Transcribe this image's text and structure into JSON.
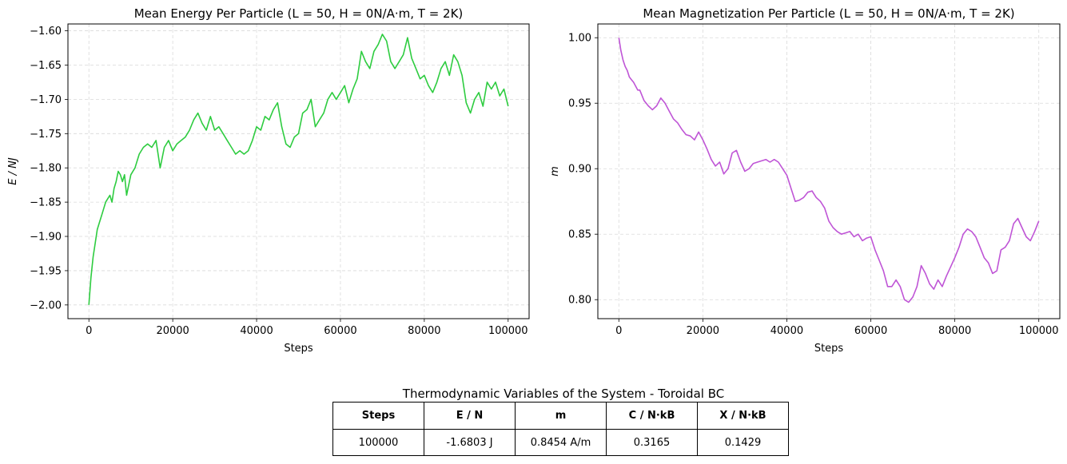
{
  "chart_data": [
    {
      "type": "line",
      "title": "Mean Energy Per Particle (L = 50, H = 0N/A·m, T = 2K)",
      "xlabel": "Steps",
      "ylabel": "E / NJ",
      "xlim": [
        -5000,
        105000
      ],
      "ylim": [
        -2.02,
        -1.59
      ],
      "xticks": [
        0,
        20000,
        40000,
        60000,
        80000,
        100000
      ],
      "xtick_labels": [
        "0",
        "20000",
        "40000",
        "60000",
        "80000",
        "100000"
      ],
      "yticks": [
        -2.0,
        -1.95,
        -1.9,
        -1.85,
        -1.8,
        -1.75,
        -1.7,
        -1.65,
        -1.6
      ],
      "ytick_labels": [
        "−2.00",
        "−1.95",
        "−1.90",
        "−1.85",
        "−1.80",
        "−1.75",
        "−1.70",
        "−1.65",
        "−1.60"
      ],
      "grid": true,
      "color": "#2ecc40",
      "series": [
        {
          "x": [
            0,
            500,
            1000,
            1500,
            2000,
            2500,
            3000,
            3500,
            4000,
            4500,
            5000,
            5500,
            6000,
            6500,
            7000,
            7500,
            8000,
            8500,
            9000,
            10000,
            11000,
            12000,
            13000,
            14000,
            15000,
            16000,
            17000,
            18000,
            19000,
            20000,
            21000,
            22000,
            23000,
            24000,
            25000,
            26000,
            27000,
            28000,
            29000,
            30000,
            31000,
            32000,
            33000,
            34000,
            35000,
            36000,
            37000,
            38000,
            39000,
            40000,
            41000,
            42000,
            43000,
            44000,
            45000,
            46000,
            47000,
            48000,
            49000,
            50000,
            51000,
            52000,
            53000,
            54000,
            55000,
            56000,
            57000,
            58000,
            59000,
            60000,
            61000,
            62000,
            63000,
            64000,
            65000,
            66000,
            67000,
            68000,
            69000,
            70000,
            71000,
            72000,
            73000,
            74000,
            75000,
            76000,
            77000,
            78000,
            79000,
            80000,
            81000,
            82000,
            83000,
            84000,
            85000,
            86000,
            87000,
            88000,
            89000,
            90000,
            91000,
            92000,
            93000,
            94000,
            95000,
            96000,
            97000,
            98000,
            99000,
            100000
          ],
          "y": [
            -2.0,
            -1.96,
            -1.93,
            -1.91,
            -1.89,
            -1.88,
            -1.87,
            -1.86,
            -1.85,
            -1.845,
            -1.84,
            -1.85,
            -1.83,
            -1.82,
            -1.805,
            -1.81,
            -1.82,
            -1.81,
            -1.84,
            -1.81,
            -1.8,
            -1.78,
            -1.77,
            -1.765,
            -1.77,
            -1.76,
            -1.8,
            -1.77,
            -1.76,
            -1.775,
            -1.765,
            -1.76,
            -1.755,
            -1.745,
            -1.73,
            -1.72,
            -1.735,
            -1.745,
            -1.725,
            -1.745,
            -1.74,
            -1.75,
            -1.76,
            -1.77,
            -1.78,
            -1.775,
            -1.78,
            -1.775,
            -1.76,
            -1.74,
            -1.745,
            -1.725,
            -1.73,
            -1.715,
            -1.705,
            -1.74,
            -1.765,
            -1.77,
            -1.755,
            -1.75,
            -1.72,
            -1.715,
            -1.7,
            -1.74,
            -1.73,
            -1.72,
            -1.7,
            -1.69,
            -1.7,
            -1.69,
            -1.68,
            -1.705,
            -1.685,
            -1.67,
            -1.63,
            -1.645,
            -1.655,
            -1.63,
            -1.62,
            -1.605,
            -1.615,
            -1.645,
            -1.655,
            -1.645,
            -1.635,
            -1.61,
            -1.64,
            -1.655,
            -1.67,
            -1.665,
            -1.68,
            -1.69,
            -1.675,
            -1.655,
            -1.645,
            -1.665,
            -1.635,
            -1.645,
            -1.665,
            -1.705,
            -1.72,
            -1.7,
            -1.69,
            -1.71,
            -1.675,
            -1.685,
            -1.675,
            -1.695,
            -1.685,
            -1.71
          ]
        }
      ]
    },
    {
      "type": "line",
      "title": "Mean Magnetization Per Particle (L = 50, H = 0N/A·m, T = 2K)",
      "xlabel": "Steps",
      "ylabel": "m",
      "xlim": [
        -5000,
        105000
      ],
      "ylim": [
        0.7855,
        1.0105
      ],
      "xticks": [
        0,
        20000,
        40000,
        60000,
        80000,
        100000
      ],
      "xtick_labels": [
        "0",
        "20000",
        "40000",
        "60000",
        "80000",
        "100000"
      ],
      "yticks": [
        0.8,
        0.85,
        0.9,
        0.95,
        1.0
      ],
      "ytick_labels": [
        "0.80",
        "0.85",
        "0.90",
        "0.95",
        "1.00"
      ],
      "grid": true,
      "color": "#bf55d6",
      "series": [
        {
          "x": [
            0,
            500,
            1000,
            1500,
            2000,
            2500,
            3000,
            3500,
            4000,
            4500,
            5000,
            6000,
            7000,
            8000,
            9000,
            10000,
            11000,
            12000,
            13000,
            14000,
            15000,
            16000,
            17000,
            18000,
            19000,
            20000,
            21000,
            22000,
            23000,
            24000,
            25000,
            26000,
            27000,
            28000,
            29000,
            30000,
            31000,
            32000,
            33000,
            34000,
            35000,
            36000,
            37000,
            38000,
            39000,
            40000,
            41000,
            42000,
            43000,
            44000,
            45000,
            46000,
            47000,
            48000,
            49000,
            50000,
            51000,
            52000,
            53000,
            54000,
            55000,
            56000,
            57000,
            58000,
            59000,
            60000,
            61000,
            62000,
            63000,
            64000,
            65000,
            66000,
            67000,
            68000,
            69000,
            70000,
            71000,
            72000,
            73000,
            74000,
            75000,
            76000,
            77000,
            78000,
            79000,
            80000,
            81000,
            82000,
            83000,
            84000,
            85000,
            86000,
            87000,
            88000,
            89000,
            90000,
            91000,
            92000,
            93000,
            94000,
            95000,
            96000,
            97000,
            98000,
            99000,
            100000
          ],
          "y": [
            1.0,
            0.99,
            0.983,
            0.978,
            0.975,
            0.97,
            0.968,
            0.966,
            0.963,
            0.96,
            0.96,
            0.952,
            0.948,
            0.945,
            0.948,
            0.954,
            0.95,
            0.944,
            0.938,
            0.935,
            0.93,
            0.926,
            0.925,
            0.922,
            0.928,
            0.922,
            0.915,
            0.907,
            0.902,
            0.905,
            0.896,
            0.9,
            0.912,
            0.914,
            0.905,
            0.898,
            0.9,
            0.904,
            0.905,
            0.906,
            0.907,
            0.905,
            0.907,
            0.905,
            0.9,
            0.895,
            0.885,
            0.875,
            0.876,
            0.878,
            0.882,
            0.883,
            0.878,
            0.875,
            0.87,
            0.86,
            0.855,
            0.852,
            0.85,
            0.851,
            0.852,
            0.848,
            0.85,
            0.845,
            0.847,
            0.848,
            0.838,
            0.83,
            0.822,
            0.81,
            0.81,
            0.815,
            0.81,
            0.8,
            0.798,
            0.802,
            0.81,
            0.826,
            0.82,
            0.812,
            0.808,
            0.815,
            0.81,
            0.818,
            0.825,
            0.832,
            0.84,
            0.85,
            0.854,
            0.852,
            0.848,
            0.84,
            0.832,
            0.828,
            0.82,
            0.822,
            0.838,
            0.84,
            0.845,
            0.858,
            0.862,
            0.855,
            0.848,
            0.845,
            0.852,
            0.86
          ]
        }
      ]
    }
  ],
  "table": {
    "title": "Thermodynamic Variables of the System - Toroidal BC",
    "headers": [
      "Steps",
      "E / N",
      "m",
      "C / N·kB",
      "X / N·kB"
    ],
    "row": [
      "100000",
      "-1.6803 J",
      "0.8454 A/m",
      "0.3165",
      "0.1429"
    ]
  }
}
